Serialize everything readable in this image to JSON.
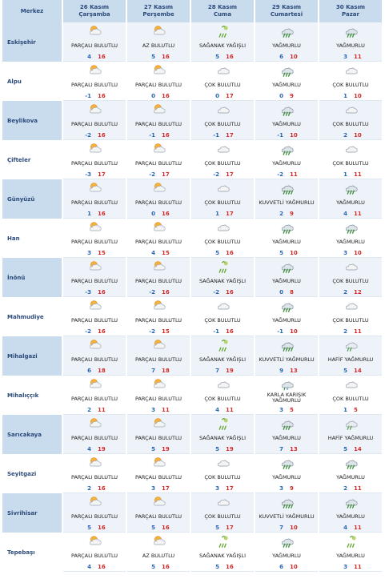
{
  "header": {
    "merkez": "Merkez",
    "days": [
      {
        "date": "26 Kasım",
        "name": "Çarşamba"
      },
      {
        "date": "27 Kasım",
        "name": "Perşembe"
      },
      {
        "date": "28 Kasım",
        "name": "Cuma"
      },
      {
        "date": "29 Kasım",
        "name": "Cumartesi"
      },
      {
        "date": "30 Kasım",
        "name": "Pazar"
      }
    ]
  },
  "rows": [
    {
      "city": "Eskişehir",
      "days": [
        {
          "icon": "partly-cloudy-icon",
          "cond": "PARÇALI BULUTLU",
          "lo": "4",
          "hi": "16"
        },
        {
          "icon": "partly-cloudy-icon",
          "cond": "AZ BULUTLU",
          "lo": "5",
          "hi": "16"
        },
        {
          "icon": "showers-icon",
          "cond": "SAĞANAK YAĞIŞLI",
          "lo": "5",
          "hi": "16"
        },
        {
          "icon": "rain-icon",
          "cond": "YAĞMURLU",
          "lo": "6",
          "hi": "10"
        },
        {
          "icon": "rain-icon",
          "cond": "YAĞMURLU",
          "lo": "3",
          "hi": "11"
        }
      ]
    },
    {
      "city": "Alpu",
      "days": [
        {
          "icon": "partly-cloudy-icon",
          "cond": "PARÇALI BULUTLU",
          "lo": "-1",
          "hi": "16"
        },
        {
          "icon": "partly-cloudy-icon",
          "cond": "PARÇALI BULUTLU",
          "lo": "0",
          "hi": "16"
        },
        {
          "icon": "cloudy-icon",
          "cond": "ÇOK BULUTLU",
          "lo": "0",
          "hi": "17"
        },
        {
          "icon": "rain-icon",
          "cond": "YAĞMURLU",
          "lo": "0",
          "hi": "9"
        },
        {
          "icon": "cloudy-icon",
          "cond": "ÇOK BULUTLU",
          "lo": "1",
          "hi": "10"
        }
      ]
    },
    {
      "city": "Beylikova",
      "days": [
        {
          "icon": "partly-cloudy-icon",
          "cond": "PARÇALI BULUTLU",
          "lo": "-2",
          "hi": "16"
        },
        {
          "icon": "partly-cloudy-icon",
          "cond": "PARÇALI BULUTLU",
          "lo": "-1",
          "hi": "16"
        },
        {
          "icon": "cloudy-icon",
          "cond": "ÇOK BULUTLU",
          "lo": "-1",
          "hi": "17"
        },
        {
          "icon": "rain-icon",
          "cond": "YAĞMURLU",
          "lo": "-1",
          "hi": "10"
        },
        {
          "icon": "cloudy-icon",
          "cond": "ÇOK BULUTLU",
          "lo": "2",
          "hi": "10"
        }
      ]
    },
    {
      "city": "Çifteler",
      "days": [
        {
          "icon": "partly-cloudy-icon",
          "cond": "PARÇALI BULUTLU",
          "lo": "-3",
          "hi": "17"
        },
        {
          "icon": "partly-cloudy-icon",
          "cond": "PARÇALI BULUTLU",
          "lo": "-2",
          "hi": "17"
        },
        {
          "icon": "cloudy-icon",
          "cond": "ÇOK BULUTLU",
          "lo": "-2",
          "hi": "17"
        },
        {
          "icon": "rain-icon",
          "cond": "YAĞMURLU",
          "lo": "-2",
          "hi": "11"
        },
        {
          "icon": "cloudy-icon",
          "cond": "ÇOK BULUTLU",
          "lo": "1",
          "hi": "11"
        }
      ]
    },
    {
      "city": "Günyüzü",
      "days": [
        {
          "icon": "partly-cloudy-icon",
          "cond": "PARÇALI BULUTLU",
          "lo": "1",
          "hi": "16"
        },
        {
          "icon": "partly-cloudy-icon",
          "cond": "PARÇALI BULUTLU",
          "lo": "0",
          "hi": "16"
        },
        {
          "icon": "cloudy-icon",
          "cond": "ÇOK BULUTLU",
          "lo": "1",
          "hi": "17"
        },
        {
          "icon": "heavy-rain-icon",
          "cond": "KUVVETLİ YAĞMURLU",
          "lo": "2",
          "hi": "9"
        },
        {
          "icon": "rain-icon",
          "cond": "YAĞMURLU",
          "lo": "4",
          "hi": "11"
        }
      ]
    },
    {
      "city": "Han",
      "days": [
        {
          "icon": "partly-cloudy-icon",
          "cond": "PARÇALI BULUTLU",
          "lo": "3",
          "hi": "15"
        },
        {
          "icon": "partly-cloudy-icon",
          "cond": "PARÇALI BULUTLU",
          "lo": "4",
          "hi": "15"
        },
        {
          "icon": "cloudy-icon",
          "cond": "ÇOK BULUTLU",
          "lo": "5",
          "hi": "16"
        },
        {
          "icon": "rain-icon",
          "cond": "YAĞMURLU",
          "lo": "5",
          "hi": "10"
        },
        {
          "icon": "rain-icon",
          "cond": "YAĞMURLU",
          "lo": "3",
          "hi": "10"
        }
      ]
    },
    {
      "city": "İnönü",
      "days": [
        {
          "icon": "partly-cloudy-icon",
          "cond": "PARÇALI BULUTLU",
          "lo": "-3",
          "hi": "16"
        },
        {
          "icon": "partly-cloudy-icon",
          "cond": "PARÇALI BULUTLU",
          "lo": "-2",
          "hi": "16"
        },
        {
          "icon": "showers-icon",
          "cond": "SAĞANAK YAĞIŞLI",
          "lo": "-2",
          "hi": "16"
        },
        {
          "icon": "rain-icon",
          "cond": "YAĞMURLU",
          "lo": "0",
          "hi": "8"
        },
        {
          "icon": "cloudy-icon",
          "cond": "ÇOK BULUTLU",
          "lo": "2",
          "hi": "12"
        }
      ]
    },
    {
      "city": "Mahmudiye",
      "days": [
        {
          "icon": "partly-cloudy-icon",
          "cond": "PARÇALI BULUTLU",
          "lo": "-2",
          "hi": "16"
        },
        {
          "icon": "partly-cloudy-icon",
          "cond": "PARÇALI BULUTLU",
          "lo": "-2",
          "hi": "15"
        },
        {
          "icon": "cloudy-icon",
          "cond": "ÇOK BULUTLU",
          "lo": "-1",
          "hi": "16"
        },
        {
          "icon": "rain-icon",
          "cond": "YAĞMURLU",
          "lo": "-1",
          "hi": "10"
        },
        {
          "icon": "cloudy-icon",
          "cond": "ÇOK BULUTLU",
          "lo": "2",
          "hi": "11"
        }
      ]
    },
    {
      "city": "Mihalgazi",
      "days": [
        {
          "icon": "partly-cloudy-icon",
          "cond": "PARÇALI BULUTLU",
          "lo": "6",
          "hi": "18"
        },
        {
          "icon": "partly-cloudy-icon",
          "cond": "PARÇALI BULUTLU",
          "lo": "7",
          "hi": "18"
        },
        {
          "icon": "showers-icon",
          "cond": "SAĞANAK YAĞIŞLI",
          "lo": "7",
          "hi": "19"
        },
        {
          "icon": "heavy-rain-icon",
          "cond": "KUVVETLİ YAĞMURLU",
          "lo": "9",
          "hi": "13"
        },
        {
          "icon": "light-rain-icon",
          "cond": "HAFİF YAĞMURLU",
          "lo": "5",
          "hi": "14"
        }
      ]
    },
    {
      "city": "Mihalıççık",
      "days": [
        {
          "icon": "partly-cloudy-icon",
          "cond": "PARÇALI BULUTLU",
          "lo": "2",
          "hi": "11"
        },
        {
          "icon": "partly-cloudy-icon",
          "cond": "PARÇALI BULUTLU",
          "lo": "3",
          "hi": "11"
        },
        {
          "icon": "cloudy-icon",
          "cond": "ÇOK BULUTLU",
          "lo": "4",
          "hi": "11"
        },
        {
          "icon": "sleet-icon",
          "cond": "KARLA KARIŞIK YAĞMURLU",
          "lo": "3",
          "hi": "5"
        },
        {
          "icon": "cloudy-icon",
          "cond": "ÇOK BULUTLU",
          "lo": "1",
          "hi": "5"
        }
      ]
    },
    {
      "city": "Sarıcakaya",
      "days": [
        {
          "icon": "partly-cloudy-icon",
          "cond": "PARÇALI BULUTLU",
          "lo": "4",
          "hi": "19"
        },
        {
          "icon": "partly-cloudy-icon",
          "cond": "PARÇALI BULUTLU",
          "lo": "5",
          "hi": "19"
        },
        {
          "icon": "showers-icon",
          "cond": "SAĞANAK YAĞIŞLI",
          "lo": "5",
          "hi": "19"
        },
        {
          "icon": "rain-icon",
          "cond": "YAĞMURLU",
          "lo": "7",
          "hi": "13"
        },
        {
          "icon": "light-rain-icon",
          "cond": "HAFİF YAĞMURLU",
          "lo": "5",
          "hi": "14"
        }
      ]
    },
    {
      "city": "Seyitgazi",
      "days": [
        {
          "icon": "partly-cloudy-icon",
          "cond": "PARÇALI BULUTLU",
          "lo": "2",
          "hi": "16"
        },
        {
          "icon": "partly-cloudy-icon",
          "cond": "PARÇALI BULUTLU",
          "lo": "3",
          "hi": "17"
        },
        {
          "icon": "cloudy-icon",
          "cond": "ÇOK BULUTLU",
          "lo": "3",
          "hi": "17"
        },
        {
          "icon": "rain-icon",
          "cond": "YAĞMURLU",
          "lo": "3",
          "hi": "9"
        },
        {
          "icon": "rain-icon",
          "cond": "YAĞMURLU",
          "lo": "2",
          "hi": "11"
        }
      ]
    },
    {
      "city": "Sivrihisar",
      "days": [
        {
          "icon": "partly-cloudy-icon",
          "cond": "PARÇALI BULUTLU",
          "lo": "5",
          "hi": "16"
        },
        {
          "icon": "partly-cloudy-icon",
          "cond": "PARÇALI BULUTLU",
          "lo": "5",
          "hi": "16"
        },
        {
          "icon": "cloudy-icon",
          "cond": "ÇOK BULUTLU",
          "lo": "5",
          "hi": "17"
        },
        {
          "icon": "heavy-rain-icon",
          "cond": "KUVVETLİ YAĞMURLU",
          "lo": "7",
          "hi": "10"
        },
        {
          "icon": "rain-icon",
          "cond": "YAĞMURLU",
          "lo": "4",
          "hi": "11"
        }
      ]
    },
    {
      "city": "Tepebaşı",
      "days": [
        {
          "icon": "partly-cloudy-icon",
          "cond": "PARÇALI BULUTLU",
          "lo": "4",
          "hi": "16"
        },
        {
          "icon": "partly-cloudy-icon",
          "cond": "AZ BULUTLU",
          "lo": "5",
          "hi": "16"
        },
        {
          "icon": "showers-icon",
          "cond": "SAĞANAK YAĞIŞLI",
          "lo": "5",
          "hi": "16"
        },
        {
          "icon": "rain-icon",
          "cond": "YAĞMURLU",
          "lo": "6",
          "hi": "10"
        },
        {
          "icon": "showers-icon",
          "cond": "YAĞMURLU",
          "lo": "3",
          "hi": "11"
        }
      ]
    }
  ],
  "colors": {
    "header_bg": "#c9dcee",
    "city_text": "#2b4a7a",
    "low_temp": "#2a64b8",
    "high_temp": "#d42a2a",
    "odd_row_bg": "#eef3f9"
  }
}
